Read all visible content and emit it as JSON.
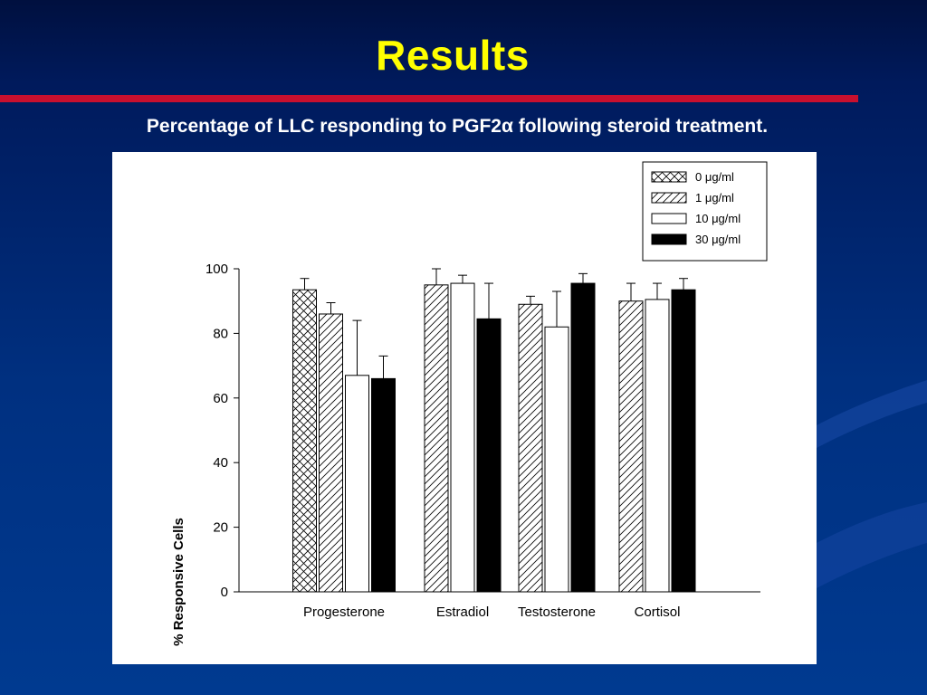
{
  "slide": {
    "title": "Results",
    "subtitle": "Percentage of LLC responding to PGF2α following steroid treatment."
  },
  "colors": {
    "title": "#ffff00",
    "rule": "#c8102e",
    "background": "#003080"
  },
  "chart_data": {
    "type": "bar",
    "title": "",
    "xlabel": "",
    "ylabel": "% Responsive Cells",
    "ylim": [
      0,
      100
    ],
    "yticks": [
      0,
      20,
      40,
      60,
      80,
      100
    ],
    "categories": [
      "Progesterone",
      "Estradiol",
      "Testosterone",
      "Cortisol"
    ],
    "series": [
      {
        "name": "0 μg/ml",
        "fill": "crosshatch",
        "values": [
          93.5,
          null,
          null,
          null
        ],
        "errors": [
          3.5,
          null,
          null,
          null
        ]
      },
      {
        "name": "1 μg/ml",
        "fill": "diagonal",
        "values": [
          86,
          95,
          89,
          90
        ],
        "errors": [
          3.5,
          5,
          2.5,
          5.5
        ]
      },
      {
        "name": "10 μg/ml",
        "fill": "white",
        "values": [
          67,
          95.5,
          82,
          90.5
        ],
        "errors": [
          17,
          2.5,
          11,
          5
        ]
      },
      {
        "name": "30 μg/ml",
        "fill": "black",
        "values": [
          66,
          84.5,
          95.5,
          93.5
        ],
        "errors": [
          7,
          11,
          3,
          3.5
        ]
      }
    ],
    "legend": "top-right",
    "grid": false
  }
}
